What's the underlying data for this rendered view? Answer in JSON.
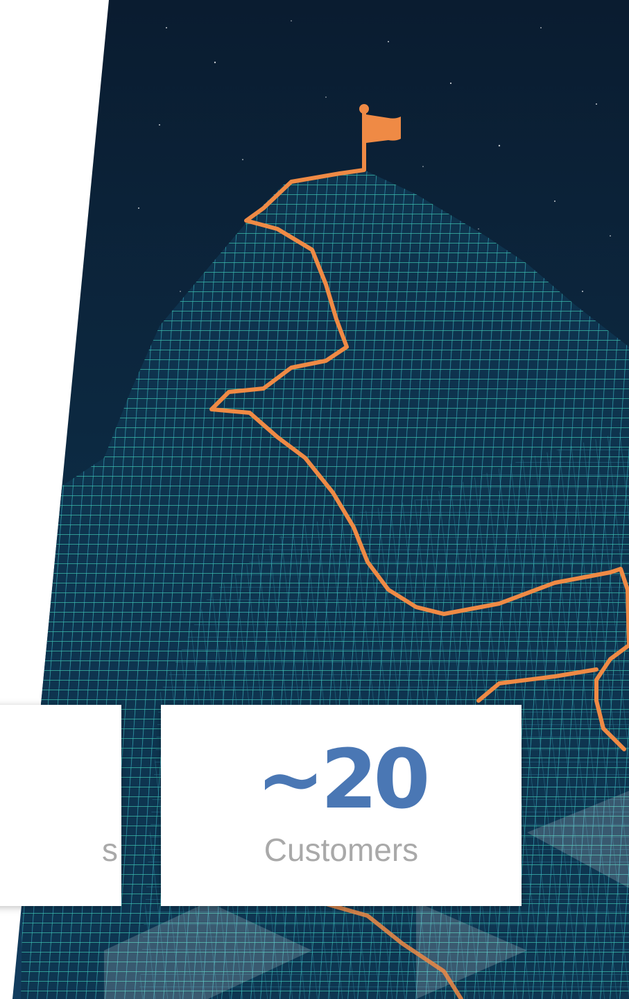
{
  "colors": {
    "sky": "#0b2036",
    "mesh": "#3fb7b0",
    "trail": "#ef8a45",
    "flag": "#ef8a45",
    "stat_number": "#4a77b4",
    "stat_label": "#a9a9a9"
  },
  "illustration": {
    "subject": "mountain-wireframe-with-flag",
    "icon": "flag-icon"
  },
  "stats": {
    "left": {
      "label": "s"
    },
    "right": {
      "value": "~20",
      "label": "Customers"
    }
  }
}
